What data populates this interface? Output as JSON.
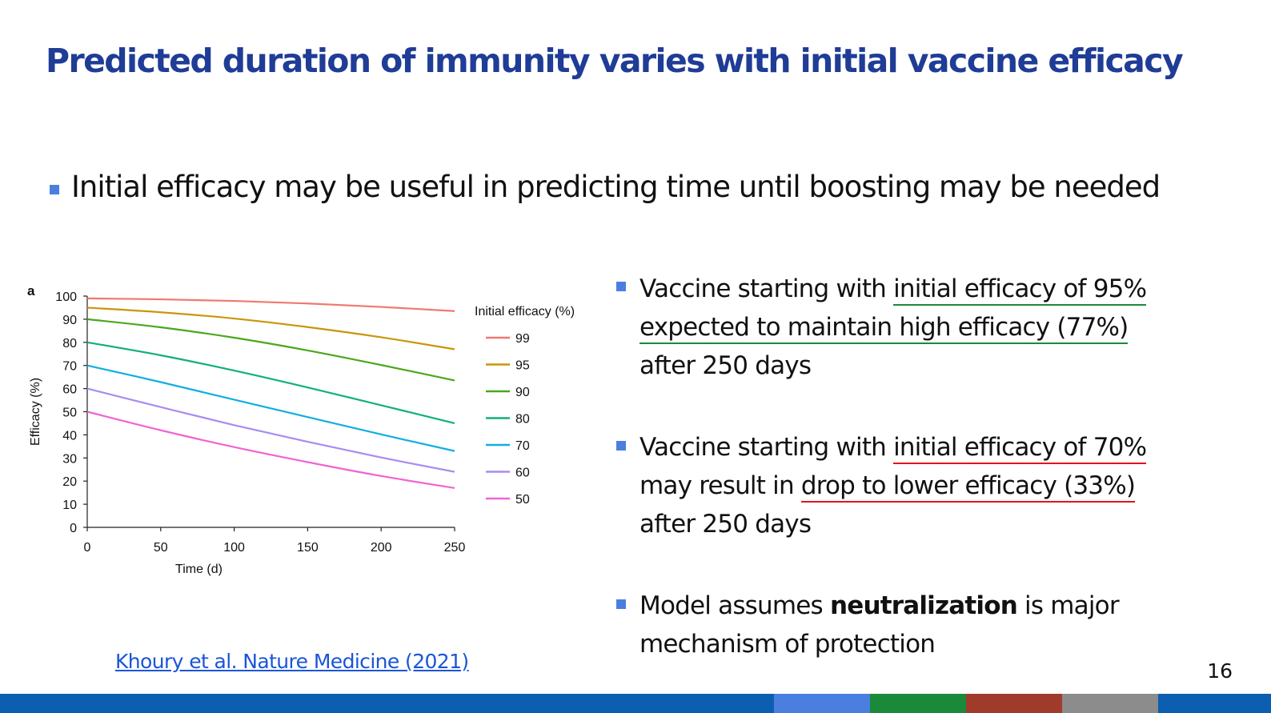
{
  "slide": {
    "title": "Predicted duration of immunity varies with initial vaccine efficacy",
    "main_bullet": "Initial efficacy may be useful in predicting time until boosting may be needed",
    "bullet1": {
      "pre": "Vaccine starting with ",
      "ul1": "initial efficacy of 95%",
      "ul2": "expected to maintain high efficacy (77%)",
      "line3": "after 250 days"
    },
    "bullet2": {
      "pre": "Vaccine starting with ",
      "ul1": "initial efficacy of 70%",
      "pre2": "may result in ",
      "ul2": "drop to lower efficacy (33%)",
      "line3": "after 250 days"
    },
    "bullet3": {
      "pre": "Model assumes ",
      "bold": "neutralization",
      "post": " is major",
      "line2": "mechanism of protection"
    },
    "citation": "Khoury et al. Nature Medicine (2021)",
    "page_number": "16",
    "colors": {
      "title": "#1f3c96",
      "bullet": "#4a7fe0",
      "green_underline": "#1a8a3a",
      "red_underline": "#e0141e",
      "link": "#1a55d6"
    },
    "footer_colors": [
      "#0c5fb0",
      "#4a7fe0",
      "#1a8a3a",
      "#a03a2a",
      "#8c8c8c",
      "#0c5fb0"
    ]
  },
  "chart_data": {
    "type": "line",
    "panel_label": "a",
    "xlabel": "Time (d)",
    "ylabel": "Efficacy (%)",
    "xlim": [
      0,
      250
    ],
    "ylim": [
      0,
      100
    ],
    "xticks": [
      0,
      50,
      100,
      150,
      200,
      250
    ],
    "yticks": [
      0,
      10,
      20,
      30,
      40,
      50,
      60,
      70,
      80,
      90,
      100
    ],
    "grid": false,
    "legend_title": "Initial efficacy (%)",
    "legend_position": "right",
    "x": [
      0,
      50,
      100,
      150,
      200,
      250
    ],
    "series": [
      {
        "name": "99",
        "color": "#f07870",
        "values": [
          99,
          98.6,
          97.9,
          96.8,
          95.3,
          93.5
        ]
      },
      {
        "name": "95",
        "color": "#c8960a",
        "values": [
          95,
          93.0,
          90.3,
          86.6,
          82.2,
          77
        ]
      },
      {
        "name": "90",
        "color": "#4aa81c",
        "values": [
          90,
          86.5,
          82.0,
          76.5,
          70.2,
          63.5
        ]
      },
      {
        "name": "80",
        "color": "#12b07a",
        "values": [
          80,
          74.4,
          67.8,
          60.5,
          52.8,
          45
        ]
      },
      {
        "name": "70",
        "color": "#12aee0",
        "values": [
          70,
          62.8,
          55.2,
          47.7,
          40.2,
          33
        ]
      },
      {
        "name": "60",
        "color": "#a88cf0",
        "values": [
          60,
          52.0,
          44.2,
          37.0,
          30.2,
          24
        ]
      },
      {
        "name": "50",
        "color": "#f064d2",
        "values": [
          50,
          42.0,
          34.7,
          28.2,
          22.2,
          17
        ]
      }
    ]
  }
}
